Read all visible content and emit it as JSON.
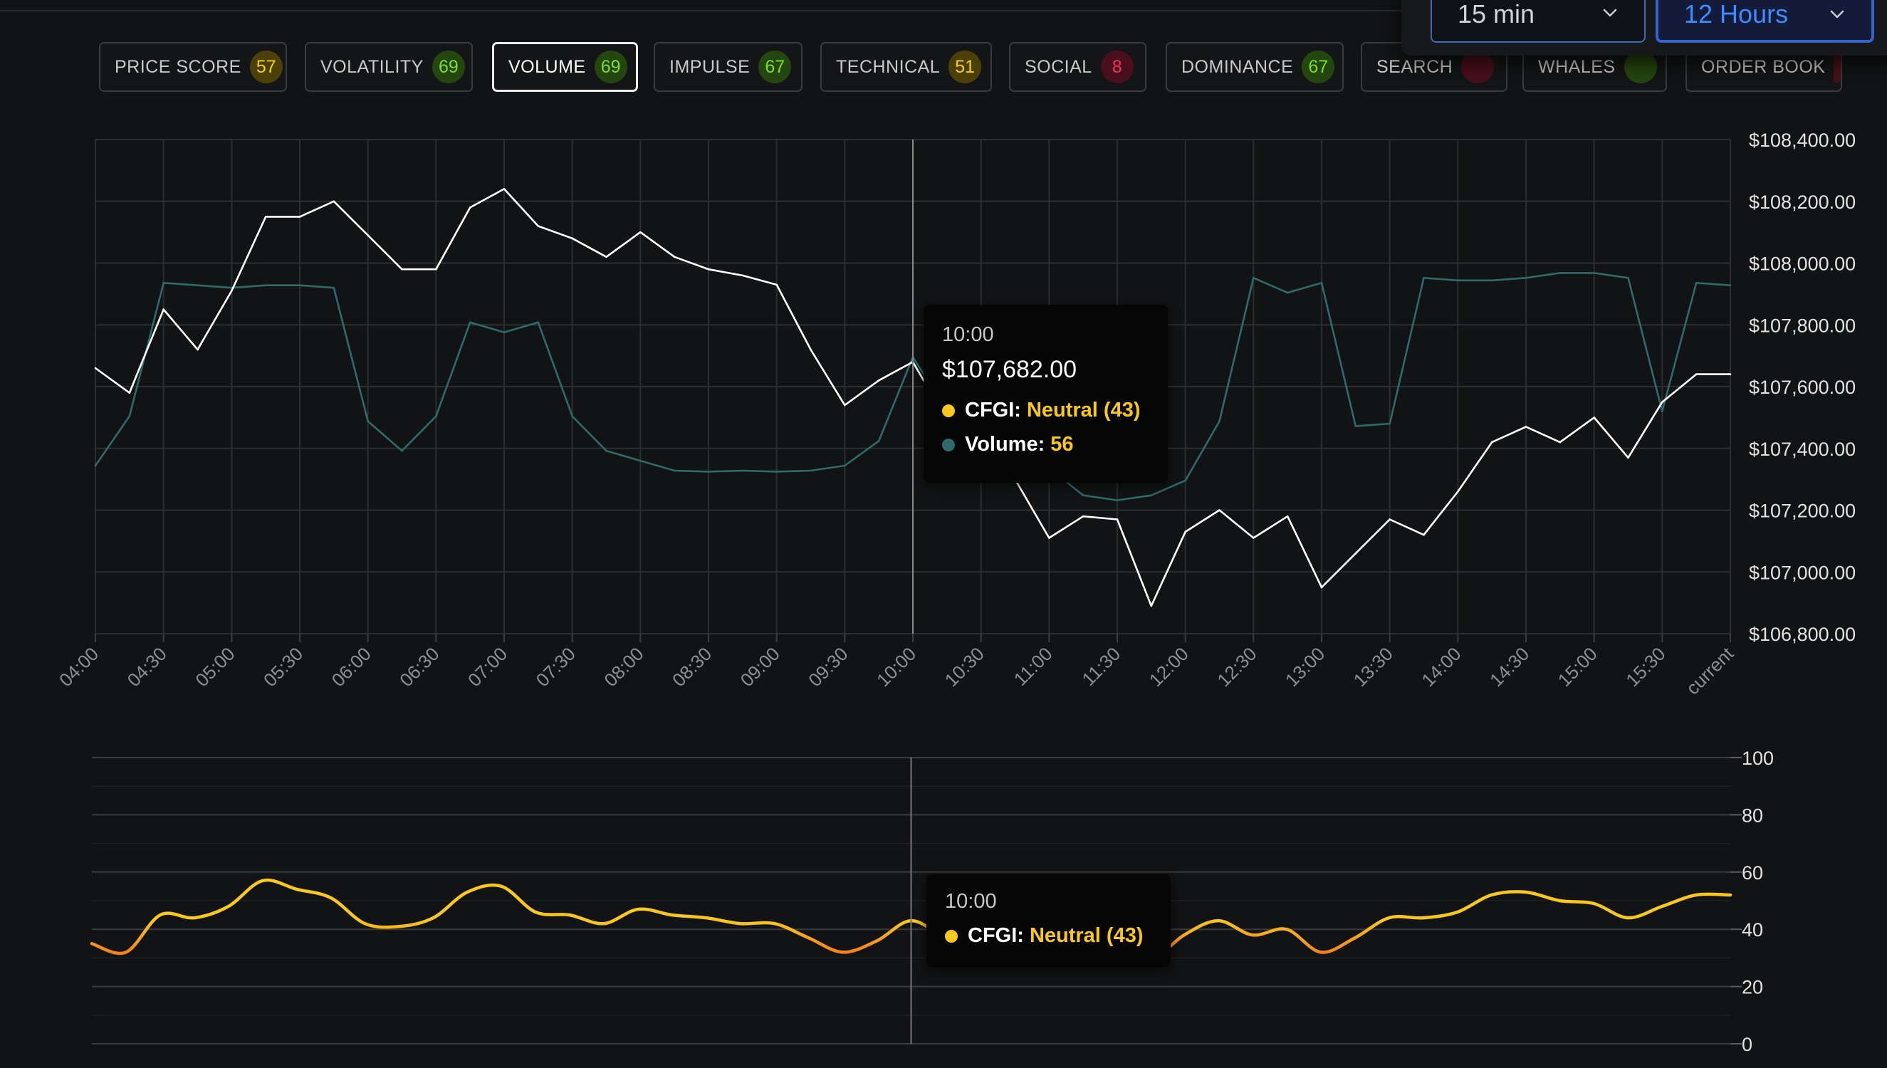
{
  "tabs": [
    {
      "label": "PRICE SCORE",
      "score": "57",
      "level": "yellow",
      "active": false
    },
    {
      "label": "VOLATILITY",
      "score": "69",
      "level": "green",
      "active": false
    },
    {
      "label": "VOLUME",
      "score": "69",
      "level": "green",
      "active": true
    },
    {
      "label": "IMPULSE",
      "score": "67",
      "level": "green",
      "active": false
    },
    {
      "label": "TECHNICAL",
      "score": "51",
      "level": "yellow",
      "active": false
    },
    {
      "label": "SOCIAL",
      "score": "8",
      "level": "red",
      "active": false
    },
    {
      "label": "DOMINANCE",
      "score": "67",
      "level": "green",
      "active": false
    },
    {
      "label": "SEARCH",
      "score": "",
      "level": "red",
      "active": false
    },
    {
      "label": "WHALES",
      "score": "",
      "level": "green",
      "active": false
    },
    {
      "label": "ORDER BOOK",
      "score": "",
      "level": "red",
      "active": false
    }
  ],
  "controls": {
    "interval": "15 min",
    "range": "12 Hours"
  },
  "colors": {
    "price_line": "#ffffff",
    "volume_line": "#2f6b6b",
    "cfgi_high": "#f8c81c",
    "cfgi_low": "#f26a1b",
    "tab_active_border": "#ececec",
    "range_accent": "#3f8bff"
  },
  "tooltip_main": {
    "time": "10:00",
    "price": "$107,682.00",
    "cfgi_label": "CFGI:",
    "cfgi_value": "Neutral (43)",
    "volume_label": "Volume:",
    "volume_value": "56"
  },
  "tooltip_sub": {
    "time": "10:00",
    "cfgi_label": "CFGI:",
    "cfgi_value": "Neutral (43)"
  },
  "chart_data": [
    {
      "type": "line",
      "x_labels": [
        "04:00",
        "04:30",
        "05:00",
        "05:30",
        "06:00",
        "06:30",
        "07:00",
        "07:30",
        "08:00",
        "08:30",
        "09:00",
        "09:30",
        "10:00",
        "10:30",
        "11:00",
        "11:30",
        "12:00",
        "12:30",
        "13:00",
        "13:30",
        "14:00",
        "14:30",
        "15:00",
        "15:30",
        "current"
      ],
      "y_ticks": [
        "$108,400.00",
        "$108,200.00",
        "$108,000.00",
        "$107,800.00",
        "$107,600.00",
        "$107,400.00",
        "$107,200.00",
        "$107,000.00",
        "$106,800.00"
      ],
      "ylim": [
        106800,
        108400
      ],
      "grid": true,
      "crosshair_x": "10:00",
      "series": [
        {
          "name": "Price",
          "axis": "price",
          "values": [
            107660,
            107580,
            107850,
            107720,
            107910,
            108150,
            108150,
            108200,
            108090,
            107980,
            107980,
            108180,
            108240,
            108120,
            108080,
            108020,
            108100,
            108020,
            107980,
            107960,
            107930,
            107720,
            107540,
            107620,
            107680,
            107490,
            107460,
            107300,
            107110,
            107180,
            107170,
            106890,
            107130,
            107200,
            107110,
            107180,
            106950,
            107060,
            107170,
            107120,
            107260,
            107420,
            107470,
            107420,
            107500,
            107370,
            107550,
            107640,
            107640
          ]
        },
        {
          "name": "Volume",
          "axis": "volume_0_100",
          "values": [
            34,
            44,
            71,
            70.5,
            70,
            70.5,
            70.5,
            70,
            43,
            37,
            44,
            63,
            61,
            63,
            44,
            37,
            35,
            33,
            32.8,
            33,
            32.8,
            33,
            34,
            39,
            56,
            45,
            44,
            36,
            33.5,
            28,
            27,
            28,
            31,
            43,
            72,
            69,
            71,
            42,
            42.5,
            72,
            71.5,
            71.5,
            72,
            73,
            73,
            72,
            45,
            71,
            70.5
          ]
        }
      ]
    },
    {
      "type": "line",
      "x_labels": [
        "04:00",
        "04:30",
        "05:00",
        "05:30",
        "06:00",
        "06:30",
        "07:00",
        "07:30",
        "08:00",
        "08:30",
        "09:00",
        "09:30",
        "10:00",
        "10:30",
        "11:00",
        "11:30",
        "12:00",
        "12:30",
        "13:00",
        "13:30",
        "14:00",
        "14:30",
        "15:00",
        "15:30",
        "current"
      ],
      "y_ticks": [
        "100",
        "80",
        "60",
        "40",
        "20",
        "0"
      ],
      "ylim": [
        0,
        100
      ],
      "grid": true,
      "crosshair_x": "10:00",
      "series": [
        {
          "name": "CFGI",
          "values": [
            35,
            32,
            45,
            44,
            48,
            57,
            54,
            51,
            42,
            41,
            44,
            53,
            55,
            46,
            45,
            42,
            47,
            45,
            44,
            42,
            42,
            37,
            32,
            36,
            43,
            37,
            33,
            31,
            29,
            29,
            31,
            29,
            38,
            43,
            38,
            40,
            32,
            37,
            44,
            44,
            46,
            52,
            53,
            50,
            49,
            44,
            48,
            52,
            52
          ]
        }
      ]
    }
  ]
}
